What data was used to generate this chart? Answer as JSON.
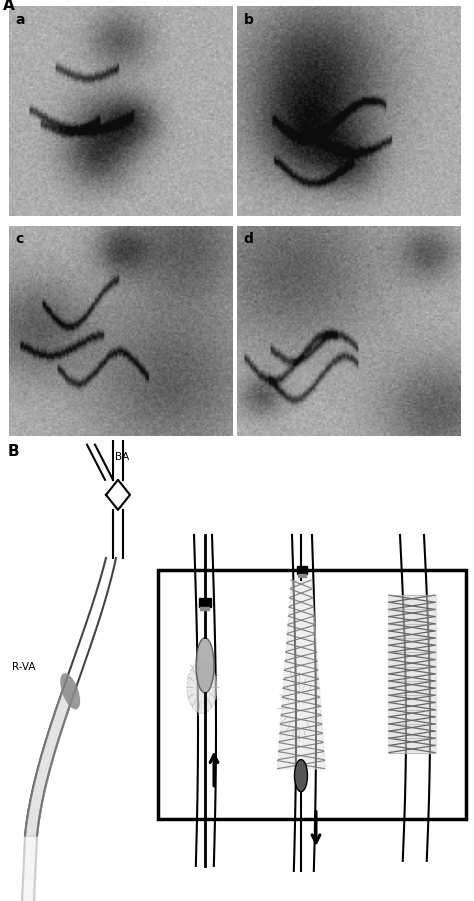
{
  "fig_width": 4.74,
  "fig_height": 9.01,
  "dpi": 100,
  "bg_color": "#ffffff",
  "label_A": "A",
  "label_B": "B",
  "label_a": "a",
  "label_b": "b",
  "label_c": "c",
  "label_d": "d",
  "label_BA": "BA",
  "label_RVA": "R-VA",
  "line_color": "#000000",
  "gray_vessel": "#888888",
  "gray_light": "#cccccc",
  "gray_dark": "#444444",
  "gray_stent": "#999999",
  "gray_medium": "#777777",
  "gray_fill": "#dddddd"
}
